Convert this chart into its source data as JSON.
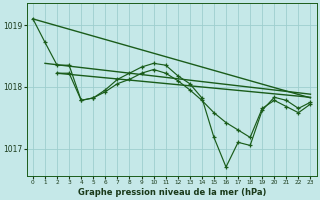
{
  "background_color": "#c5e8e8",
  "grid_color": "#9ecece",
  "line_color": "#1a5c1a",
  "title": "Graphe pression niveau de la mer (hPa)",
  "xlim": [
    -0.5,
    23.5
  ],
  "ylim": [
    1016.55,
    1019.35
  ],
  "yticks": [
    1017,
    1018,
    1019
  ],
  "xticks": [
    0,
    1,
    2,
    3,
    4,
    5,
    6,
    7,
    8,
    9,
    10,
    11,
    12,
    13,
    14,
    15,
    16,
    17,
    18,
    19,
    20,
    21,
    22,
    23
  ],
  "line1_x": [
    0,
    23
  ],
  "line1_y": [
    1019.1,
    1017.82
  ],
  "line2_x": [
    1,
    23
  ],
  "line2_y": [
    1018.38,
    1017.88
  ],
  "line3_x": [
    2,
    23
  ],
  "line3_y": [
    1018.22,
    1017.83
  ],
  "main_x": [
    0,
    1,
    2,
    3,
    4,
    5,
    6,
    7,
    8,
    9,
    10,
    11,
    12,
    13,
    14,
    15,
    16,
    17,
    18,
    19,
    20,
    21,
    22,
    23
  ],
  "main_y": [
    1019.1,
    1018.72,
    1018.35,
    1018.35,
    1017.78,
    1017.82,
    1017.95,
    1018.12,
    1018.22,
    1018.32,
    1018.38,
    1018.35,
    1018.18,
    1018.05,
    1017.82,
    1017.18,
    1016.7,
    1017.1,
    1017.05,
    1017.62,
    1017.83,
    1017.78,
    1017.65,
    1017.75
  ],
  "sec_x": [
    2,
    3,
    4,
    5,
    6,
    7,
    8,
    9,
    10,
    11,
    12,
    13,
    14,
    15,
    16,
    17,
    18,
    19,
    20,
    21,
    22,
    23
  ],
  "sec_y": [
    1018.22,
    1018.22,
    1017.78,
    1017.82,
    1017.92,
    1018.05,
    1018.12,
    1018.22,
    1018.28,
    1018.22,
    1018.1,
    1017.95,
    1017.78,
    1017.58,
    1017.42,
    1017.3,
    1017.18,
    1017.65,
    1017.78,
    1017.68,
    1017.58,
    1017.72
  ]
}
